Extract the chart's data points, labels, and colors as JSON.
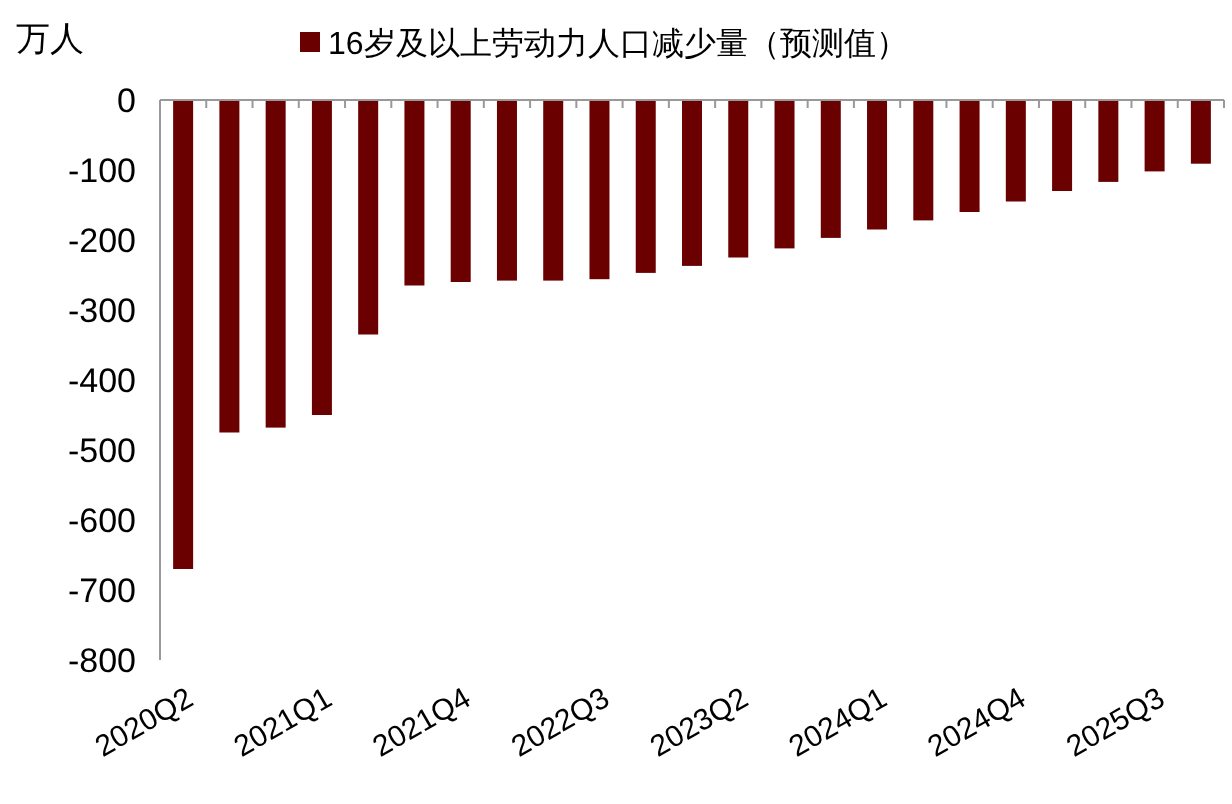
{
  "chart_data": {
    "type": "bar",
    "ylabel": "万人",
    "categories": [
      "2020Q2",
      null,
      null,
      "2021Q1",
      null,
      null,
      "2021Q4",
      null,
      null,
      "2022Q3",
      null,
      null,
      "2023Q2",
      null,
      null,
      "2024Q1",
      null,
      null,
      "2024Q4",
      null,
      null,
      "2025Q3",
      null
    ],
    "series": [
      {
        "name": "16岁及以上劳动力人口减少量（预测值）",
        "color": "#6b0000",
        "values": [
          -670,
          -475,
          -468,
          -450,
          -335,
          -265,
          -260,
          -258,
          -258,
          -256,
          -247,
          -237,
          -225,
          -212,
          -197,
          -185,
          -172,
          -160,
          -145,
          -130,
          -117,
          -102,
          -91
        ]
      }
    ],
    "ylim": [
      -800,
      0
    ],
    "yticks": [
      0,
      -100,
      -200,
      -300,
      -400,
      -500,
      -600,
      -700,
      -800
    ],
    "legend": "top",
    "grid": false
  }
}
